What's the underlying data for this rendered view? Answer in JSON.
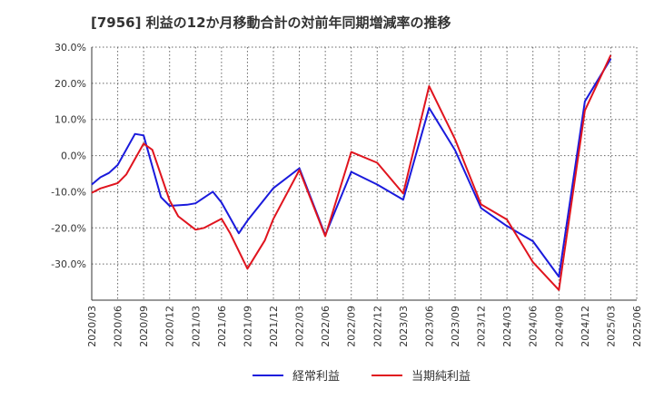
{
  "chart_data": {
    "type": "line",
    "title": "[7956]  利益の12か月移動合計の対前年同期増減率の推移",
    "xlabel": "",
    "ylabel": "",
    "ylim": [
      -40,
      30
    ],
    "yticks": [
      -30,
      -20,
      -10,
      0,
      10,
      20,
      30
    ],
    "ytick_labels": [
      "-30.0%",
      "-20.0%",
      "-10.0%",
      "0.0%",
      "10.0%",
      "20.0%",
      "30.0%"
    ],
    "xtick_labels": [
      "2020/03",
      "2020/06",
      "2020/09",
      "2020/12",
      "2021/03",
      "2021/06",
      "2021/09",
      "2021/12",
      "2022/03",
      "2022/06",
      "2022/09",
      "2022/12",
      "2023/03",
      "2023/06",
      "2023/09",
      "2023/12",
      "2024/03",
      "2024/06",
      "2024/09",
      "2024/12",
      "2025/03",
      "2025/06"
    ],
    "grid": true,
    "legend_position": "bottom",
    "series": [
      {
        "name": "経常利益",
        "color": "#1a1adc",
        "points": [
          {
            "m": 0,
            "v": -8.0
          },
          {
            "m": 1,
            "v": -6.0
          },
          {
            "m": 2,
            "v": -4.8
          },
          {
            "m": 3,
            "v": -2.6
          },
          {
            "m": 5,
            "v": 6.0
          },
          {
            "m": 6,
            "v": 5.6
          },
          {
            "m": 8,
            "v": -11.5
          },
          {
            "m": 9,
            "v": -13.9
          },
          {
            "m": 11,
            "v": -13.6
          },
          {
            "m": 12,
            "v": -13.2
          },
          {
            "m": 14,
            "v": -10.0
          },
          {
            "m": 15,
            "v": -13.0
          },
          {
            "m": 17,
            "v": -21.5
          },
          {
            "m": 18,
            "v": -18.0
          },
          {
            "m": 21,
            "v": -9.0
          },
          {
            "m": 24,
            "v": -3.5
          },
          {
            "m": 27,
            "v": -22.0
          },
          {
            "m": 30,
            "v": -4.5
          },
          {
            "m": 33,
            "v": -8.0
          },
          {
            "m": 36,
            "v": -12.2
          },
          {
            "m": 39,
            "v": 13.2
          },
          {
            "m": 42,
            "v": 1.5
          },
          {
            "m": 45,
            "v": -14.5
          },
          {
            "m": 48,
            "v": -19.5
          },
          {
            "m": 51,
            "v": -23.7
          },
          {
            "m": 54,
            "v": -33.5
          },
          {
            "m": 57,
            "v": 15.0
          },
          {
            "m": 60,
            "v": 26.8
          }
        ]
      },
      {
        "name": "当期純利益",
        "color": "#e0141e",
        "points": [
          {
            "m": 0,
            "v": -10.3
          },
          {
            "m": 1,
            "v": -9.1
          },
          {
            "m": 3,
            "v": -7.6
          },
          {
            "m": 4,
            "v": -5.2
          },
          {
            "m": 6,
            "v": 3.3
          },
          {
            "m": 7,
            "v": 1.6
          },
          {
            "m": 9,
            "v": -12.4
          },
          {
            "m": 10,
            "v": -16.8
          },
          {
            "m": 12,
            "v": -20.5
          },
          {
            "m": 13,
            "v": -20.0
          },
          {
            "m": 15,
            "v": -17.5
          },
          {
            "m": 16,
            "v": -21.5
          },
          {
            "m": 18,
            "v": -31.3
          },
          {
            "m": 20,
            "v": -23.5
          },
          {
            "m": 21,
            "v": -17.5
          },
          {
            "m": 24,
            "v": -4.0
          },
          {
            "m": 27,
            "v": -22.3
          },
          {
            "m": 30,
            "v": 1.0
          },
          {
            "m": 33,
            "v": -2.0
          },
          {
            "m": 36,
            "v": -10.5
          },
          {
            "m": 39,
            "v": 19.2
          },
          {
            "m": 42,
            "v": 4.5
          },
          {
            "m": 45,
            "v": -13.5
          },
          {
            "m": 48,
            "v": -17.7
          },
          {
            "m": 51,
            "v": -29.5
          },
          {
            "m": 54,
            "v": -37.2
          },
          {
            "m": 57,
            "v": 12.5
          },
          {
            "m": 60,
            "v": 27.8
          }
        ]
      }
    ]
  }
}
